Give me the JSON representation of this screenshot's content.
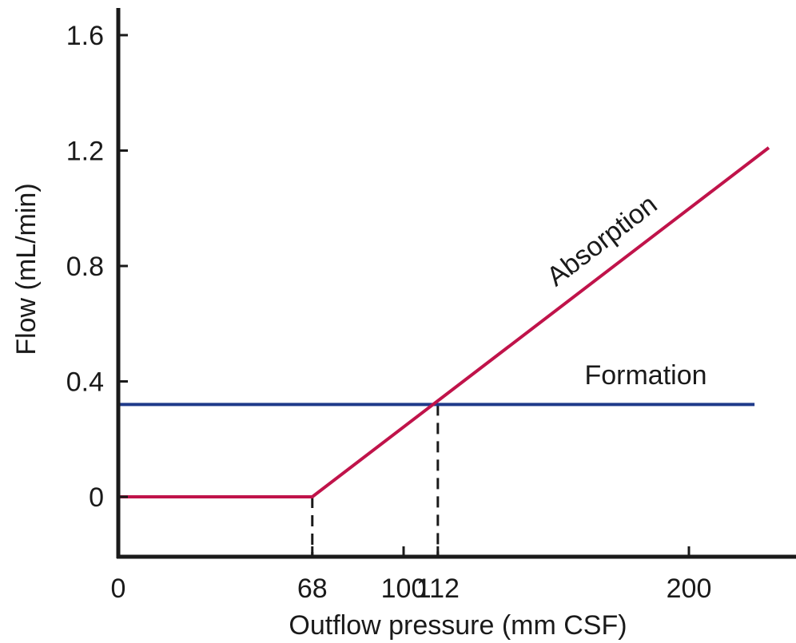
{
  "chart_data": {
    "type": "line",
    "xlabel": "Outflow pressure (mm CSF)",
    "ylabel": "Flow (mL/min)",
    "xlim": [
      0,
      230
    ],
    "ylim": [
      -0.2,
      1.7
    ],
    "x_ticks": [
      {
        "value": 0,
        "label": "0"
      },
      {
        "value": 68,
        "label": "68"
      },
      {
        "value": 100,
        "label": "100"
      },
      {
        "value": 112,
        "label": "112"
      },
      {
        "value": 200,
        "label": "200"
      }
    ],
    "y_ticks": [
      {
        "value": 0,
        "label": "0"
      },
      {
        "value": 0.4,
        "label": "0.4"
      },
      {
        "value": 0.8,
        "label": "0.8"
      },
      {
        "value": 1.2,
        "label": "1.2"
      },
      {
        "value": 1.6,
        "label": "1.6"
      }
    ],
    "grid": false,
    "series": [
      {
        "name": "Absorption",
        "color": "#c0134a",
        "points": [
          {
            "x": 0,
            "y": 0
          },
          {
            "x": 68,
            "y": 0
          },
          {
            "x": 228,
            "y": 1.21
          }
        ]
      },
      {
        "name": "Formation",
        "color": "#1f3a8a",
        "points": [
          {
            "x": 0,
            "y": 0.32
          },
          {
            "x": 223,
            "y": 0.32
          }
        ]
      }
    ],
    "reference_lines": [
      {
        "x": 68,
        "y_top": 0,
        "style": "dashed"
      },
      {
        "x": 112,
        "y_top": 0.32,
        "style": "dashed"
      }
    ],
    "axis_color": "#1a1a1a"
  }
}
